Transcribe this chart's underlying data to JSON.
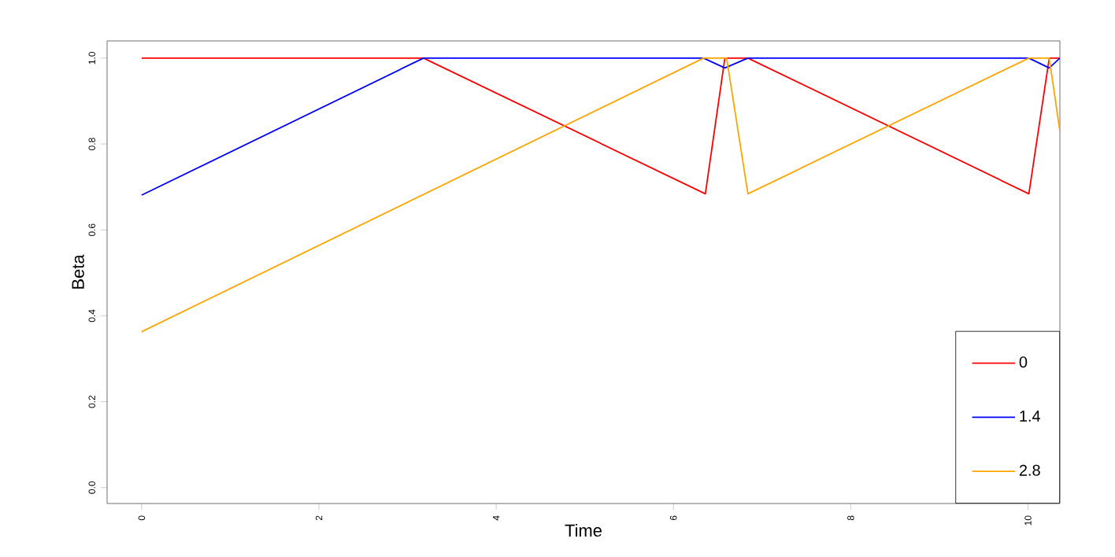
{
  "chart_data": {
    "type": "line",
    "xlabel": "Time",
    "ylabel": "Beta",
    "xlim": [
      -0.39,
      10.36
    ],
    "ylim": [
      -0.037,
      1.04
    ],
    "xticks": [
      0,
      2,
      4,
      6,
      8,
      10
    ],
    "yticks": [
      {
        "value": 0,
        "label": "0.0"
      },
      {
        "value": 0.2,
        "label": "0.2"
      },
      {
        "value": 0.4,
        "label": "0.4"
      },
      {
        "value": 0.6,
        "label": "0.6"
      },
      {
        "value": 0.8,
        "label": "0.8"
      },
      {
        "value": 1,
        "label": "1.0"
      }
    ],
    "grid": false,
    "legend": "bottom right",
    "marker": "none",
    "line_style": "solid",
    "series": [
      {
        "name": "0",
        "color": "#ff0000",
        "x": [
          0,
          3.18,
          6.36,
          6.58,
          6.84,
          10.01,
          10.24,
          10.36
        ],
        "values": [
          1,
          1,
          0.684,
          1,
          1,
          0.684,
          1,
          1
        ]
      },
      {
        "name": "1.4",
        "color": "#0000ff",
        "x": [
          0,
          3.18,
          6.34,
          6.58,
          6.84,
          10.01,
          10.24,
          10.36
        ],
        "values": [
          0.681,
          1,
          1,
          0.977,
          1,
          1,
          0.977,
          1
        ]
      },
      {
        "name": "2.8",
        "color": "#ffa500",
        "x": [
          0,
          6.34,
          6.6,
          6.84,
          10.01,
          10.24,
          10.36
        ],
        "values": [
          0.363,
          1,
          1,
          0.684,
          1,
          1,
          0.83
        ]
      }
    ]
  }
}
